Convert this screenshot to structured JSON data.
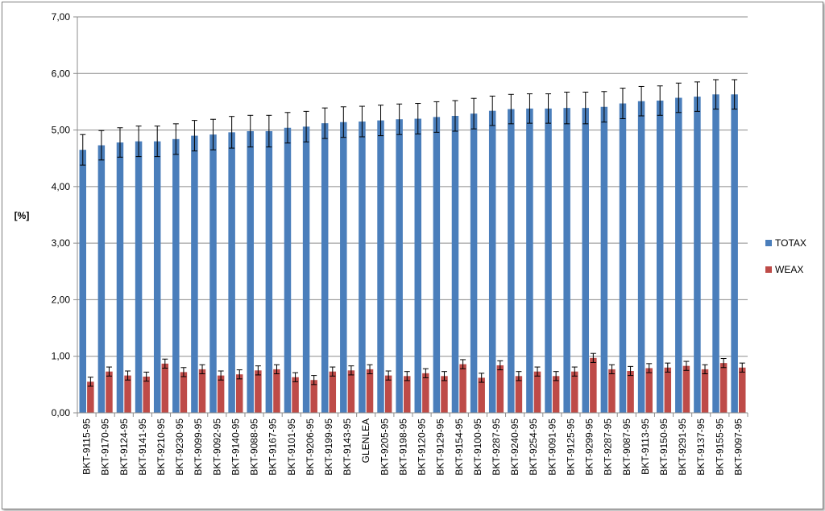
{
  "chart_data": {
    "type": "bar",
    "title": "",
    "xlabel": "",
    "ylabel": "[%]",
    "ylim": [
      0,
      7
    ],
    "yticks": [
      "0,00",
      "1,00",
      "2,00",
      "3,00",
      "4,00",
      "5,00",
      "6,00",
      "7,00"
    ],
    "grid": true,
    "legend_position": "right",
    "categories": [
      "BKT-9115-95",
      "BKT-9170-95",
      "BKT-9124-95",
      "BKT-9141-95",
      "BKT-9210-95",
      "BKT-9230-95",
      "BKT-9099-95",
      "BKT-9092-95",
      "BKT-9140-95",
      "BKT-9088-95",
      "BKT-9167-95",
      "BKT-9101-95",
      "BKT-9206-95",
      "BKT-9199-95",
      "BKT-9143-95",
      "GLENLEA",
      "BKT-9205-95",
      "BKT-9198-95",
      "BKT-9120-95",
      "BKT-9129-95",
      "BKT-9154-95",
      "BKT-9100-95",
      "BKT-9287-95",
      "BKT-9240-95",
      "BKT-9254-95",
      "BKT-9091-95",
      "BKT-9125-95",
      "BKT-9299-95",
      "BKT-9287-95",
      "BKT-9087-95",
      "BKT-9113-95",
      "BKT-9150-95",
      "BKT-9291-95",
      "BKT-9137-95",
      "BKT-9155-95",
      "BKT-9097-95"
    ],
    "series": [
      {
        "name": "TOTAX",
        "color": "#4a7ebb",
        "values": [
          4.65,
          4.73,
          4.78,
          4.8,
          4.8,
          4.84,
          4.9,
          4.92,
          4.96,
          4.98,
          4.98,
          5.04,
          5.06,
          5.12,
          5.14,
          5.15,
          5.17,
          5.19,
          5.2,
          5.23,
          5.25,
          5.29,
          5.34,
          5.37,
          5.38,
          5.38,
          5.39,
          5.39,
          5.41,
          5.47,
          5.51,
          5.52,
          5.57,
          5.59,
          5.63,
          5.63
        ],
        "errors": [
          0.27,
          0.26,
          0.26,
          0.27,
          0.27,
          0.27,
          0.27,
          0.27,
          0.28,
          0.28,
          0.28,
          0.27,
          0.27,
          0.27,
          0.27,
          0.27,
          0.27,
          0.27,
          0.27,
          0.27,
          0.27,
          0.27,
          0.26,
          0.26,
          0.26,
          0.26,
          0.28,
          0.28,
          0.27,
          0.27,
          0.26,
          0.26,
          0.26,
          0.26,
          0.26,
          0.26
        ]
      },
      {
        "name": "WEAX",
        "color": "#be4b48",
        "values": [
          0.55,
          0.73,
          0.66,
          0.64,
          0.87,
          0.72,
          0.77,
          0.66,
          0.68,
          0.75,
          0.77,
          0.63,
          0.58,
          0.73,
          0.75,
          0.77,
          0.66,
          0.65,
          0.7,
          0.65,
          0.86,
          0.62,
          0.84,
          0.65,
          0.73,
          0.65,
          0.73,
          0.97,
          0.77,
          0.74,
          0.79,
          0.8,
          0.83,
          0.77,
          0.88,
          0.8
        ],
        "errors": [
          0.08,
          0.08,
          0.08,
          0.08,
          0.08,
          0.08,
          0.08,
          0.08,
          0.08,
          0.08,
          0.08,
          0.08,
          0.08,
          0.08,
          0.08,
          0.08,
          0.08,
          0.08,
          0.08,
          0.08,
          0.08,
          0.08,
          0.08,
          0.08,
          0.08,
          0.08,
          0.08,
          0.08,
          0.08,
          0.08,
          0.08,
          0.08,
          0.08,
          0.08,
          0.08,
          0.08
        ]
      }
    ]
  }
}
